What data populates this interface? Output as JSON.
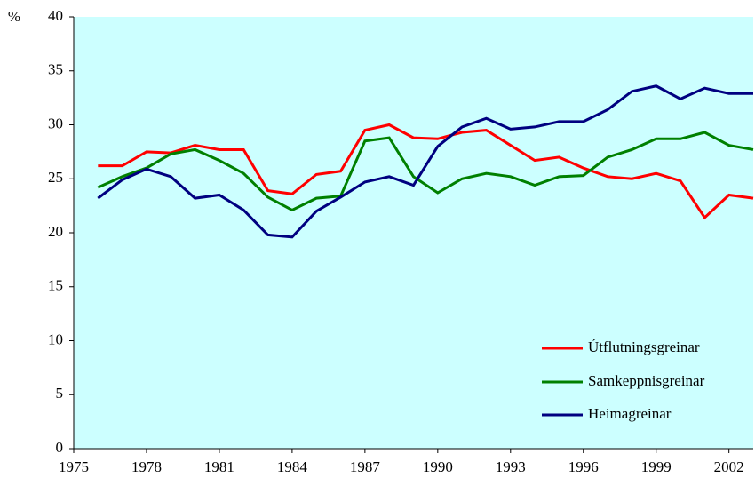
{
  "chart_data": {
    "type": "line",
    "y_label": "%",
    "x": [
      1976,
      1977,
      1978,
      1979,
      1980,
      1981,
      1982,
      1983,
      1984,
      1985,
      1986,
      1987,
      1988,
      1989,
      1990,
      1991,
      1992,
      1993,
      1994,
      1995,
      1996,
      1997,
      1998,
      1999,
      2000,
      2001,
      2002,
      2003
    ],
    "series": [
      {
        "name": "Útflutningsgreinar",
        "color": "#ff0000",
        "values": [
          26.2,
          26.2,
          27.5,
          27.4,
          28.1,
          27.7,
          27.7,
          23.9,
          23.6,
          25.4,
          25.7,
          29.5,
          30.0,
          28.8,
          28.7,
          29.3,
          29.5,
          28.1,
          26.7,
          27.0,
          26.0,
          25.2,
          25.0,
          25.5,
          24.8,
          21.4,
          23.5,
          23.2
        ]
      },
      {
        "name": "Samkeppnisgreinar",
        "color": "#008000",
        "values": [
          24.2,
          25.2,
          26.0,
          27.3,
          27.7,
          26.7,
          25.5,
          23.3,
          22.1,
          23.2,
          23.4,
          28.5,
          28.8,
          25.2,
          23.7,
          25.0,
          25.5,
          25.2,
          24.4,
          25.2,
          25.3,
          27.0,
          27.7,
          28.7,
          28.7,
          29.3,
          28.1,
          27.7
        ]
      },
      {
        "name": "Heimagreinar",
        "color": "#000080",
        "values": [
          23.2,
          24.9,
          25.9,
          25.2,
          23.2,
          23.5,
          22.1,
          19.8,
          19.6,
          22.0,
          23.3,
          24.7,
          25.2,
          24.4,
          28.0,
          29.8,
          30.6,
          29.6,
          29.8,
          30.3,
          30.3,
          31.4,
          33.1,
          33.6,
          32.4,
          33.4,
          32.9,
          32.9
        ]
      }
    ],
    "xlim": [
      1975,
      2003
    ],
    "xticks": [
      1975,
      1978,
      1981,
      1984,
      1987,
      1990,
      1993,
      1996,
      1999,
      2002
    ],
    "ylim": [
      0,
      40
    ],
    "yticks": [
      0,
      5,
      10,
      15,
      20,
      25,
      30,
      35,
      40
    ],
    "background": "#ccffff",
    "legend": "lower right"
  }
}
